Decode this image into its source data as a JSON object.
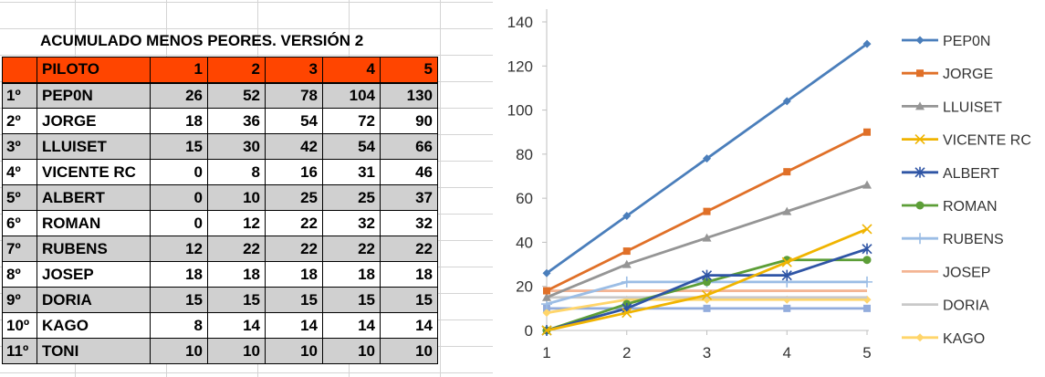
{
  "sheet": {
    "title": "ACUMULADO MENOS PEORES. VERSIÓN 2",
    "header": {
      "pos": "",
      "name": "PILOTO",
      "races": [
        "1",
        "2",
        "3",
        "4",
        "5"
      ]
    },
    "rows": [
      {
        "pos": "1º",
        "name": "PEP0N",
        "values": [
          "26",
          "52",
          "78",
          "104",
          "130"
        ]
      },
      {
        "pos": "2º",
        "name": "JORGE",
        "values": [
          "18",
          "36",
          "54",
          "72",
          "90"
        ]
      },
      {
        "pos": "3º",
        "name": "LLUISET",
        "values": [
          "15",
          "30",
          "42",
          "54",
          "66"
        ]
      },
      {
        "pos": "4º",
        "name": "VICENTE RC",
        "values": [
          "0",
          "8",
          "16",
          "31",
          "46"
        ]
      },
      {
        "pos": "5º",
        "name": "ALBERT",
        "values": [
          "0",
          "10",
          "25",
          "25",
          "37"
        ]
      },
      {
        "pos": "6º",
        "name": "ROMAN",
        "values": [
          "0",
          "12",
          "22",
          "32",
          "32"
        ]
      },
      {
        "pos": "7º",
        "name": "RUBENS",
        "values": [
          "12",
          "22",
          "22",
          "22",
          "22"
        ]
      },
      {
        "pos": "8º",
        "name": "JOSEP",
        "values": [
          "18",
          "18",
          "18",
          "18",
          "18"
        ]
      },
      {
        "pos": "9º",
        "name": "DORIA",
        "values": [
          "15",
          "15",
          "15",
          "15",
          "15"
        ]
      },
      {
        "pos": "10º",
        "name": "KAGO",
        "values": [
          "8",
          "14",
          "14",
          "14",
          "14"
        ]
      },
      {
        "pos": "11º",
        "name": "TONI",
        "values": [
          "10",
          "10",
          "10",
          "10",
          "10"
        ]
      }
    ]
  },
  "colors": {
    "header_bg": "#ff4500",
    "row_alt_bg": "#d0d0d0",
    "axis": "#bfbfbf"
  },
  "chart_data": {
    "type": "line",
    "x": [
      1,
      2,
      3,
      4,
      5
    ],
    "ylim": [
      0,
      140
    ],
    "yticks": [
      0,
      20,
      40,
      60,
      80,
      100,
      120,
      140
    ],
    "grid": false,
    "legend": "right",
    "series": [
      {
        "name": "PEP0N",
        "values": [
          26,
          52,
          78,
          104,
          130
        ],
        "color": "#4a7ebb",
        "marker": "diamond"
      },
      {
        "name": "JORGE",
        "values": [
          18,
          36,
          54,
          72,
          90
        ],
        "color": "#e07028",
        "marker": "square"
      },
      {
        "name": "LLUISET",
        "values": [
          15,
          30,
          42,
          54,
          66
        ],
        "color": "#959595",
        "marker": "triangle"
      },
      {
        "name": "VICENTE RC",
        "values": [
          0,
          8,
          16,
          31,
          46
        ],
        "color": "#f0b400",
        "marker": "x"
      },
      {
        "name": "ALBERT",
        "values": [
          0,
          10,
          25,
          25,
          37
        ],
        "color": "#2f55a5",
        "marker": "star"
      },
      {
        "name": "ROMAN",
        "values": [
          0,
          12,
          22,
          32,
          32
        ],
        "color": "#5c9e37",
        "marker": "circle"
      },
      {
        "name": "RUBENS",
        "values": [
          12,
          22,
          22,
          22,
          22
        ],
        "color": "#9bbde5",
        "marker": "plus"
      },
      {
        "name": "JOSEP",
        "values": [
          18,
          18,
          18,
          18,
          18
        ],
        "color": "#f4b594",
        "marker": "none"
      },
      {
        "name": "DORIA",
        "values": [
          15,
          15,
          15,
          15,
          15
        ],
        "color": "#c9c9c9",
        "marker": "none"
      },
      {
        "name": "KAGO",
        "values": [
          8,
          14,
          14,
          14,
          14
        ],
        "color": "#ffd56a",
        "marker": "diamond"
      },
      {
        "name": "TONI",
        "values": [
          10,
          10,
          10,
          10,
          10
        ],
        "color": "#92acdc",
        "marker": "square"
      }
    ]
  }
}
